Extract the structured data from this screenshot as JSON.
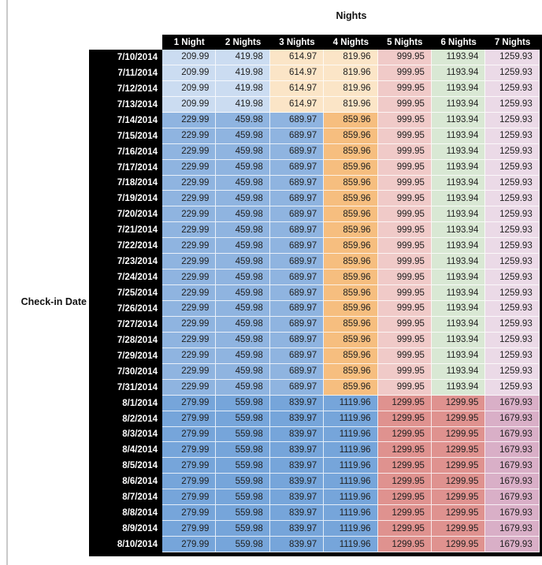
{
  "title": "Nights",
  "row_axis_label": "Check-in Date",
  "colors": {
    "header_bg": "#000000",
    "header_text": "#ffffff",
    "cell_text": "#1f1f1f",
    "blue_light": "#cbdcf1",
    "blue_medium": "#8fb4e0",
    "blue_strong": "#76a5da",
    "orange_light": "#fbe5c7",
    "orange_medium": "#f6be7f",
    "red_light": "#f0cac8",
    "red_medium": "#df928f",
    "green_light": "#d9e8d4",
    "purple_light": "#ebdae7",
    "purple_medium": "#d9afc7"
  },
  "table": {
    "column_headers": [
      "1 Night",
      "2 Nights",
      "3 Nights",
      "4 Nights",
      "5 Nights",
      "6 Nights",
      "7 Nights"
    ],
    "bands": {
      "A": [
        "blue_light",
        "blue_light",
        "orange_light",
        "orange_light",
        "red_light",
        "green_light",
        "purple_light"
      ],
      "B": [
        "blue_medium",
        "blue_medium",
        "blue_medium",
        "orange_medium",
        "red_light",
        "green_light",
        "purple_light"
      ],
      "C": [
        "blue_strong",
        "blue_strong",
        "blue_strong",
        "blue_strong",
        "red_medium",
        "red_medium",
        "purple_medium"
      ]
    },
    "rows": [
      {
        "date": "7/10/2014",
        "band": "A",
        "values": [
          "209.99",
          "419.98",
          "614.97",
          "819.96",
          "999.95",
          "1193.94",
          "1259.93"
        ]
      },
      {
        "date": "7/11/2014",
        "band": "A",
        "values": [
          "209.99",
          "419.98",
          "614.97",
          "819.96",
          "999.95",
          "1193.94",
          "1259.93"
        ]
      },
      {
        "date": "7/12/2014",
        "band": "A",
        "values": [
          "209.99",
          "419.98",
          "614.97",
          "819.96",
          "999.95",
          "1193.94",
          "1259.93"
        ]
      },
      {
        "date": "7/13/2014",
        "band": "A",
        "values": [
          "209.99",
          "419.98",
          "614.97",
          "819.96",
          "999.95",
          "1193.94",
          "1259.93"
        ]
      },
      {
        "date": "7/14/2014",
        "band": "B",
        "values": [
          "229.99",
          "459.98",
          "689.97",
          "859.96",
          "999.95",
          "1193.94",
          "1259.93"
        ]
      },
      {
        "date": "7/15/2014",
        "band": "B",
        "values": [
          "229.99",
          "459.98",
          "689.97",
          "859.96",
          "999.95",
          "1193.94",
          "1259.93"
        ]
      },
      {
        "date": "7/16/2014",
        "band": "B",
        "values": [
          "229.99",
          "459.98",
          "689.97",
          "859.96",
          "999.95",
          "1193.94",
          "1259.93"
        ]
      },
      {
        "date": "7/17/2014",
        "band": "B",
        "values": [
          "229.99",
          "459.98",
          "689.97",
          "859.96",
          "999.95",
          "1193.94",
          "1259.93"
        ]
      },
      {
        "date": "7/18/2014",
        "band": "B",
        "values": [
          "229.99",
          "459.98",
          "689.97",
          "859.96",
          "999.95",
          "1193.94",
          "1259.93"
        ]
      },
      {
        "date": "7/19/2014",
        "band": "B",
        "values": [
          "229.99",
          "459.98",
          "689.97",
          "859.96",
          "999.95",
          "1193.94",
          "1259.93"
        ]
      },
      {
        "date": "7/20/2014",
        "band": "B",
        "values": [
          "229.99",
          "459.98",
          "689.97",
          "859.96",
          "999.95",
          "1193.94",
          "1259.93"
        ]
      },
      {
        "date": "7/21/2014",
        "band": "B",
        "values": [
          "229.99",
          "459.98",
          "689.97",
          "859.96",
          "999.95",
          "1193.94",
          "1259.93"
        ]
      },
      {
        "date": "7/22/2014",
        "band": "B",
        "values": [
          "229.99",
          "459.98",
          "689.97",
          "859.96",
          "999.95",
          "1193.94",
          "1259.93"
        ]
      },
      {
        "date": "7/23/2014",
        "band": "B",
        "values": [
          "229.99",
          "459.98",
          "689.97",
          "859.96",
          "999.95",
          "1193.94",
          "1259.93"
        ]
      },
      {
        "date": "7/24/2014",
        "band": "B",
        "values": [
          "229.99",
          "459.98",
          "689.97",
          "859.96",
          "999.95",
          "1193.94",
          "1259.93"
        ]
      },
      {
        "date": "7/25/2014",
        "band": "B",
        "values": [
          "229.99",
          "459.98",
          "689.97",
          "859.96",
          "999.95",
          "1193.94",
          "1259.93"
        ]
      },
      {
        "date": "7/26/2014",
        "band": "B",
        "values": [
          "229.99",
          "459.98",
          "689.97",
          "859.96",
          "999.95",
          "1193.94",
          "1259.93"
        ]
      },
      {
        "date": "7/27/2014",
        "band": "B",
        "values": [
          "229.99",
          "459.98",
          "689.97",
          "859.96",
          "999.95",
          "1193.94",
          "1259.93"
        ]
      },
      {
        "date": "7/28/2014",
        "band": "B",
        "values": [
          "229.99",
          "459.98",
          "689.97",
          "859.96",
          "999.95",
          "1193.94",
          "1259.93"
        ]
      },
      {
        "date": "7/29/2014",
        "band": "B",
        "values": [
          "229.99",
          "459.98",
          "689.97",
          "859.96",
          "999.95",
          "1193.94",
          "1259.93"
        ]
      },
      {
        "date": "7/30/2014",
        "band": "B",
        "values": [
          "229.99",
          "459.98",
          "689.97",
          "859.96",
          "999.95",
          "1193.94",
          "1259.93"
        ]
      },
      {
        "date": "7/31/2014",
        "band": "B",
        "values": [
          "229.99",
          "459.98",
          "689.97",
          "859.96",
          "999.95",
          "1193.94",
          "1259.93"
        ]
      },
      {
        "date": "8/1/2014",
        "band": "C",
        "values": [
          "279.99",
          "559.98",
          "839.97",
          "1119.96",
          "1299.95",
          "1299.95",
          "1679.93"
        ]
      },
      {
        "date": "8/2/2014",
        "band": "C",
        "values": [
          "279.99",
          "559.98",
          "839.97",
          "1119.96",
          "1299.95",
          "1299.95",
          "1679.93"
        ]
      },
      {
        "date": "8/3/2014",
        "band": "C",
        "values": [
          "279.99",
          "559.98",
          "839.97",
          "1119.96",
          "1299.95",
          "1299.95",
          "1679.93"
        ]
      },
      {
        "date": "8/4/2014",
        "band": "C",
        "values": [
          "279.99",
          "559.98",
          "839.97",
          "1119.96",
          "1299.95",
          "1299.95",
          "1679.93"
        ]
      },
      {
        "date": "8/5/2014",
        "band": "C",
        "values": [
          "279.99",
          "559.98",
          "839.97",
          "1119.96",
          "1299.95",
          "1299.95",
          "1679.93"
        ]
      },
      {
        "date": "8/6/2014",
        "band": "C",
        "values": [
          "279.99",
          "559.98",
          "839.97",
          "1119.96",
          "1299.95",
          "1299.95",
          "1679.93"
        ]
      },
      {
        "date": "8/7/2014",
        "band": "C",
        "values": [
          "279.99",
          "559.98",
          "839.97",
          "1119.96",
          "1299.95",
          "1299.95",
          "1679.93"
        ]
      },
      {
        "date": "8/8/2014",
        "band": "C",
        "values": [
          "279.99",
          "559.98",
          "839.97",
          "1119.96",
          "1299.95",
          "1299.95",
          "1679.93"
        ]
      },
      {
        "date": "8/9/2014",
        "band": "C",
        "values": [
          "279.99",
          "559.98",
          "839.97",
          "1119.96",
          "1299.95",
          "1299.95",
          "1679.93"
        ]
      },
      {
        "date": "8/10/2014",
        "band": "C",
        "values": [
          "279.99",
          "559.98",
          "839.97",
          "1119.96",
          "1299.95",
          "1299.95",
          "1679.93"
        ]
      }
    ]
  }
}
